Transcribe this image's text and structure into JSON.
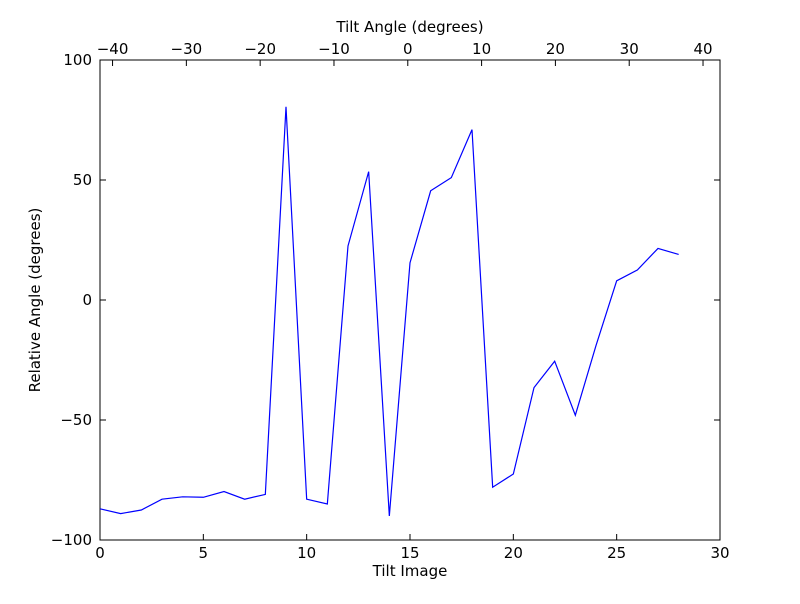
{
  "chart_data": {
    "type": "line",
    "xlabel": "Tilt Image",
    "ylabel": "Relative Angle (degrees)",
    "top_xlabel": "Tilt Angle (degrees)",
    "xlim": [
      0,
      30
    ],
    "ylim": [
      -100,
      100
    ],
    "top_xlim": [
      -41.7,
      42.3
    ],
    "grid": false,
    "x_ticks": [
      0,
      5,
      10,
      15,
      20,
      25,
      30
    ],
    "x_tick_labels": [
      "0",
      "5",
      "10",
      "15",
      "20",
      "25",
      "30"
    ],
    "y_ticks": [
      -100,
      -50,
      0,
      50,
      100
    ],
    "y_tick_labels": [
      "−100",
      "−50",
      "0",
      "50",
      "100"
    ],
    "top_x_ticks": [
      -40,
      -30,
      -20,
      -10,
      0,
      10,
      20,
      30,
      40
    ],
    "top_x_tick_labels": [
      "−40",
      "−30",
      "−20",
      "−10",
      "0",
      "10",
      "20",
      "30",
      "40"
    ],
    "series": [
      {
        "color": "#0000ff",
        "x": [
          0,
          1,
          2,
          3,
          4,
          5,
          6,
          7,
          8,
          9,
          10,
          11,
          12,
          13,
          14,
          15,
          16,
          17,
          18,
          19,
          20,
          21,
          22,
          23,
          24,
          25,
          26,
          27,
          28
        ],
        "y": [
          -87,
          -89,
          -87.5,
          -83,
          -82,
          -82.2,
          -79.8,
          -83,
          -81,
          80.5,
          -83,
          -85,
          22.5,
          53.5,
          -90,
          15.5,
          45.5,
          51,
          71,
          -78,
          -72.5,
          -36.5,
          -25.5,
          -48,
          -19,
          8,
          12.5,
          21.5,
          19
        ]
      }
    ]
  }
}
